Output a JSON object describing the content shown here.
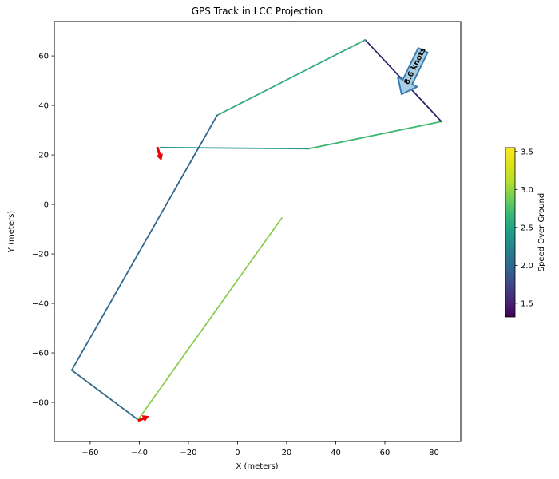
{
  "figure": {
    "title": "GPS Track in LCC Projection"
  },
  "chart_data": {
    "type": "line",
    "title": "GPS Track in LCC Projection",
    "xlabel": "X (meters)",
    "ylabel": "Y (meters)",
    "xlim": [
      -74.6,
      90.9
    ],
    "ylim": [
      -95.8,
      73.9
    ],
    "x_ticks": [
      -60,
      -40,
      -20,
      0,
      20,
      40,
      60,
      80
    ],
    "y_ticks": [
      60,
      40,
      20,
      0,
      -20,
      -40,
      -60,
      -80
    ],
    "grid": false,
    "track_points": [
      {
        "x": -31.5,
        "y": 23.0
      },
      {
        "x": 29.0,
        "y": 22.5
      },
      {
        "x": 83.0,
        "y": 33.5
      },
      {
        "x": 52.0,
        "y": 66.5
      },
      {
        "x": -8.3,
        "y": 36.0
      },
      {
        "x": -67.5,
        "y": -67.0
      },
      {
        "x": -40.5,
        "y": -87.0
      },
      {
        "x": 18.0,
        "y": -5.5
      }
    ],
    "segments": [
      {
        "from": [
          -31.5,
          23.0
        ],
        "to": [
          29.0,
          22.5
        ],
        "speed": 2.4,
        "color": "#24968c"
      },
      {
        "from": [
          29.0,
          22.5
        ],
        "to": [
          83.0,
          33.5
        ],
        "speed": 2.7,
        "color": "#3fb872"
      },
      {
        "from": [
          83.0,
          33.5
        ],
        "to": [
          52.0,
          66.5
        ],
        "speed": 1.6,
        "color": "#29276b"
      },
      {
        "from": [
          52.0,
          66.5
        ],
        "to": [
          -8.3,
          36.0
        ],
        "speed": 2.55,
        "color": "#35ab7d"
      },
      {
        "from": [
          -8.3,
          36.0
        ],
        "to": [
          -67.5,
          -67.0
        ],
        "speed": 2.0,
        "color": "#31688e"
      },
      {
        "from": [
          -67.5,
          -67.0
        ],
        "to": [
          -40.5,
          -87.0
        ],
        "speed": 2.0,
        "color": "#31688e"
      },
      {
        "from": [
          -40.5,
          -87.0
        ],
        "to": [
          18.0,
          -5.5
        ],
        "speed": 3.0,
        "color": "#8bcd50"
      }
    ],
    "colormap": "viridis",
    "colorbar": {
      "label": "Speed Over Ground",
      "ticks": [
        3.5,
        3.0,
        2.5,
        2.0,
        1.5
      ],
      "vmin": 1.32,
      "vmax": 3.55
    },
    "annotation": {
      "text": "8.6 knots",
      "tail": [
        75.5,
        62.3
      ],
      "tip": [
        66.8,
        44.5
      ],
      "fill": "#a9cde3",
      "border": "#3d7fb5",
      "text_color": "#14142e"
    },
    "quivers": [
      {
        "tail": [
          -32.7,
          23.2
        ],
        "tip": [
          -31.0,
          17.7
        ]
      },
      {
        "tail": [
          -40.5,
          -87.4
        ],
        "tip": [
          -36.0,
          -85.5
        ]
      }
    ],
    "quiver_color": "#e8000b"
  }
}
